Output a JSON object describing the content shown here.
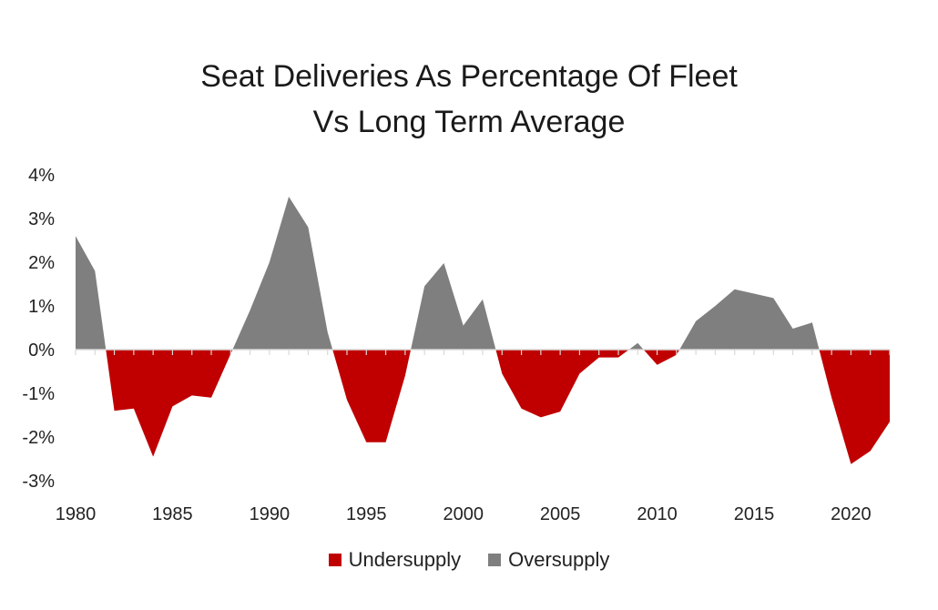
{
  "chart_data": {
    "type": "area",
    "title": "Seat Deliveries As Percentage Of Fleet",
    "subtitle": "Vs Long Term Average",
    "xlabel": "",
    "ylabel": "",
    "x": [
      1980,
      1981,
      1982,
      1983,
      1984,
      1985,
      1986,
      1987,
      1988,
      1989,
      1990,
      1991,
      1992,
      1993,
      1994,
      1995,
      1996,
      1997,
      1998,
      1999,
      2000,
      2001,
      2002,
      2003,
      2004,
      2005,
      2006,
      2007,
      2008,
      2009,
      2010,
      2011,
      2012,
      2013,
      2014,
      2015,
      2016,
      2017,
      2018,
      2019,
      2020,
      2021,
      2022
    ],
    "values": [
      2.6,
      1.8,
      -1.4,
      -1.35,
      -2.45,
      -1.3,
      -1.05,
      -1.1,
      -0.1,
      0.9,
      2.0,
      3.5,
      2.8,
      0.4,
      -1.15,
      -2.12,
      -2.12,
      -0.6,
      1.45,
      1.98,
      0.55,
      1.15,
      -0.55,
      -1.35,
      -1.55,
      -1.42,
      -0.55,
      -0.18,
      -0.18,
      0.15,
      -0.35,
      -0.12,
      0.65,
      1.0,
      1.38,
      1.28,
      1.18,
      0.48,
      0.62,
      -1.1,
      -2.62,
      -2.32,
      -1.65
    ],
    "series": [
      {
        "name": "Undersupply",
        "color": "#c00000",
        "sign": "negative"
      },
      {
        "name": "Oversupply",
        "color": "#7f7f7f",
        "sign": "positive"
      }
    ],
    "xticks": [
      1980,
      1985,
      1990,
      1995,
      2000,
      2005,
      2010,
      2015,
      2020
    ],
    "xtick_labels": [
      "1980",
      "1985",
      "1990",
      "1995",
      "2000",
      "2005",
      "2010",
      "2015",
      "2020"
    ],
    "yticks": [
      4,
      3,
      2,
      1,
      0,
      -1,
      -2,
      -3
    ],
    "ytick_labels": [
      "4%",
      "3%",
      "2%",
      "1%",
      "0%",
      "-1%",
      "-2%",
      "-3%"
    ],
    "ylim": [
      -3,
      4
    ],
    "xlim": [
      1980,
      2022
    ],
    "legend_position": "bottom",
    "grid": false
  }
}
